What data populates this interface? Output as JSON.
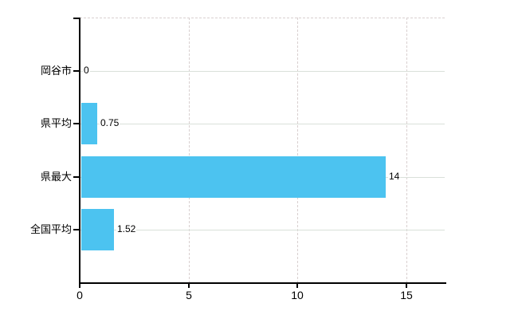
{
  "chart_data": {
    "type": "bar",
    "orientation": "horizontal",
    "title": "",
    "categories": [
      "岡谷市",
      "県平均",
      "県最大",
      "全国平均"
    ],
    "values": [
      0,
      0.75,
      14,
      1.52
    ],
    "value_labels": [
      "0",
      "0.75",
      "14",
      "1.52"
    ],
    "x_tick_values": [
      0,
      5,
      10,
      15
    ],
    "x_tick_labels": [
      "0",
      "5",
      "10",
      "15"
    ],
    "xlim": [
      0,
      16.75
    ],
    "grid": true,
    "legend": false,
    "bar_color": "#4cc3f0",
    "axis_color": "#000000",
    "h_gridline_color": "#d9e0d9",
    "v_gridline_color": "#d9d0d0",
    "text_color": "#000000",
    "background_color": "#ffffff"
  }
}
